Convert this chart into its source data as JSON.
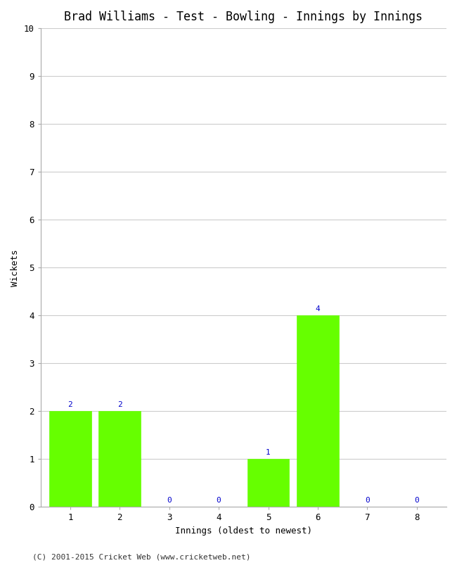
{
  "title": "Brad Williams - Test - Bowling - Innings by Innings",
  "xlabel": "Innings (oldest to newest)",
  "ylabel": "Wickets",
  "categories": [
    1,
    2,
    3,
    4,
    5,
    6,
    7,
    8
  ],
  "values": [
    2,
    2,
    0,
    0,
    1,
    4,
    0,
    0
  ],
  "bar_color": "#66ff00",
  "bar_edge_color": "#66ff00",
  "label_color": "#0000cc",
  "ylim": [
    0,
    10
  ],
  "yticks": [
    0,
    1,
    2,
    3,
    4,
    5,
    6,
    7,
    8,
    9,
    10
  ],
  "xticks": [
    1,
    2,
    3,
    4,
    5,
    6,
    7,
    8
  ],
  "background_color": "#ffffff",
  "grid_color": "#cccccc",
  "title_fontsize": 12,
  "axis_label_fontsize": 9,
  "tick_fontsize": 9,
  "bar_label_fontsize": 8,
  "footer": "(C) 2001-2015 Cricket Web (www.cricketweb.net)",
  "footer_fontsize": 8,
  "figsize": [
    6.5,
    8.0
  ],
  "dpi": 100,
  "bar_width": 0.85
}
